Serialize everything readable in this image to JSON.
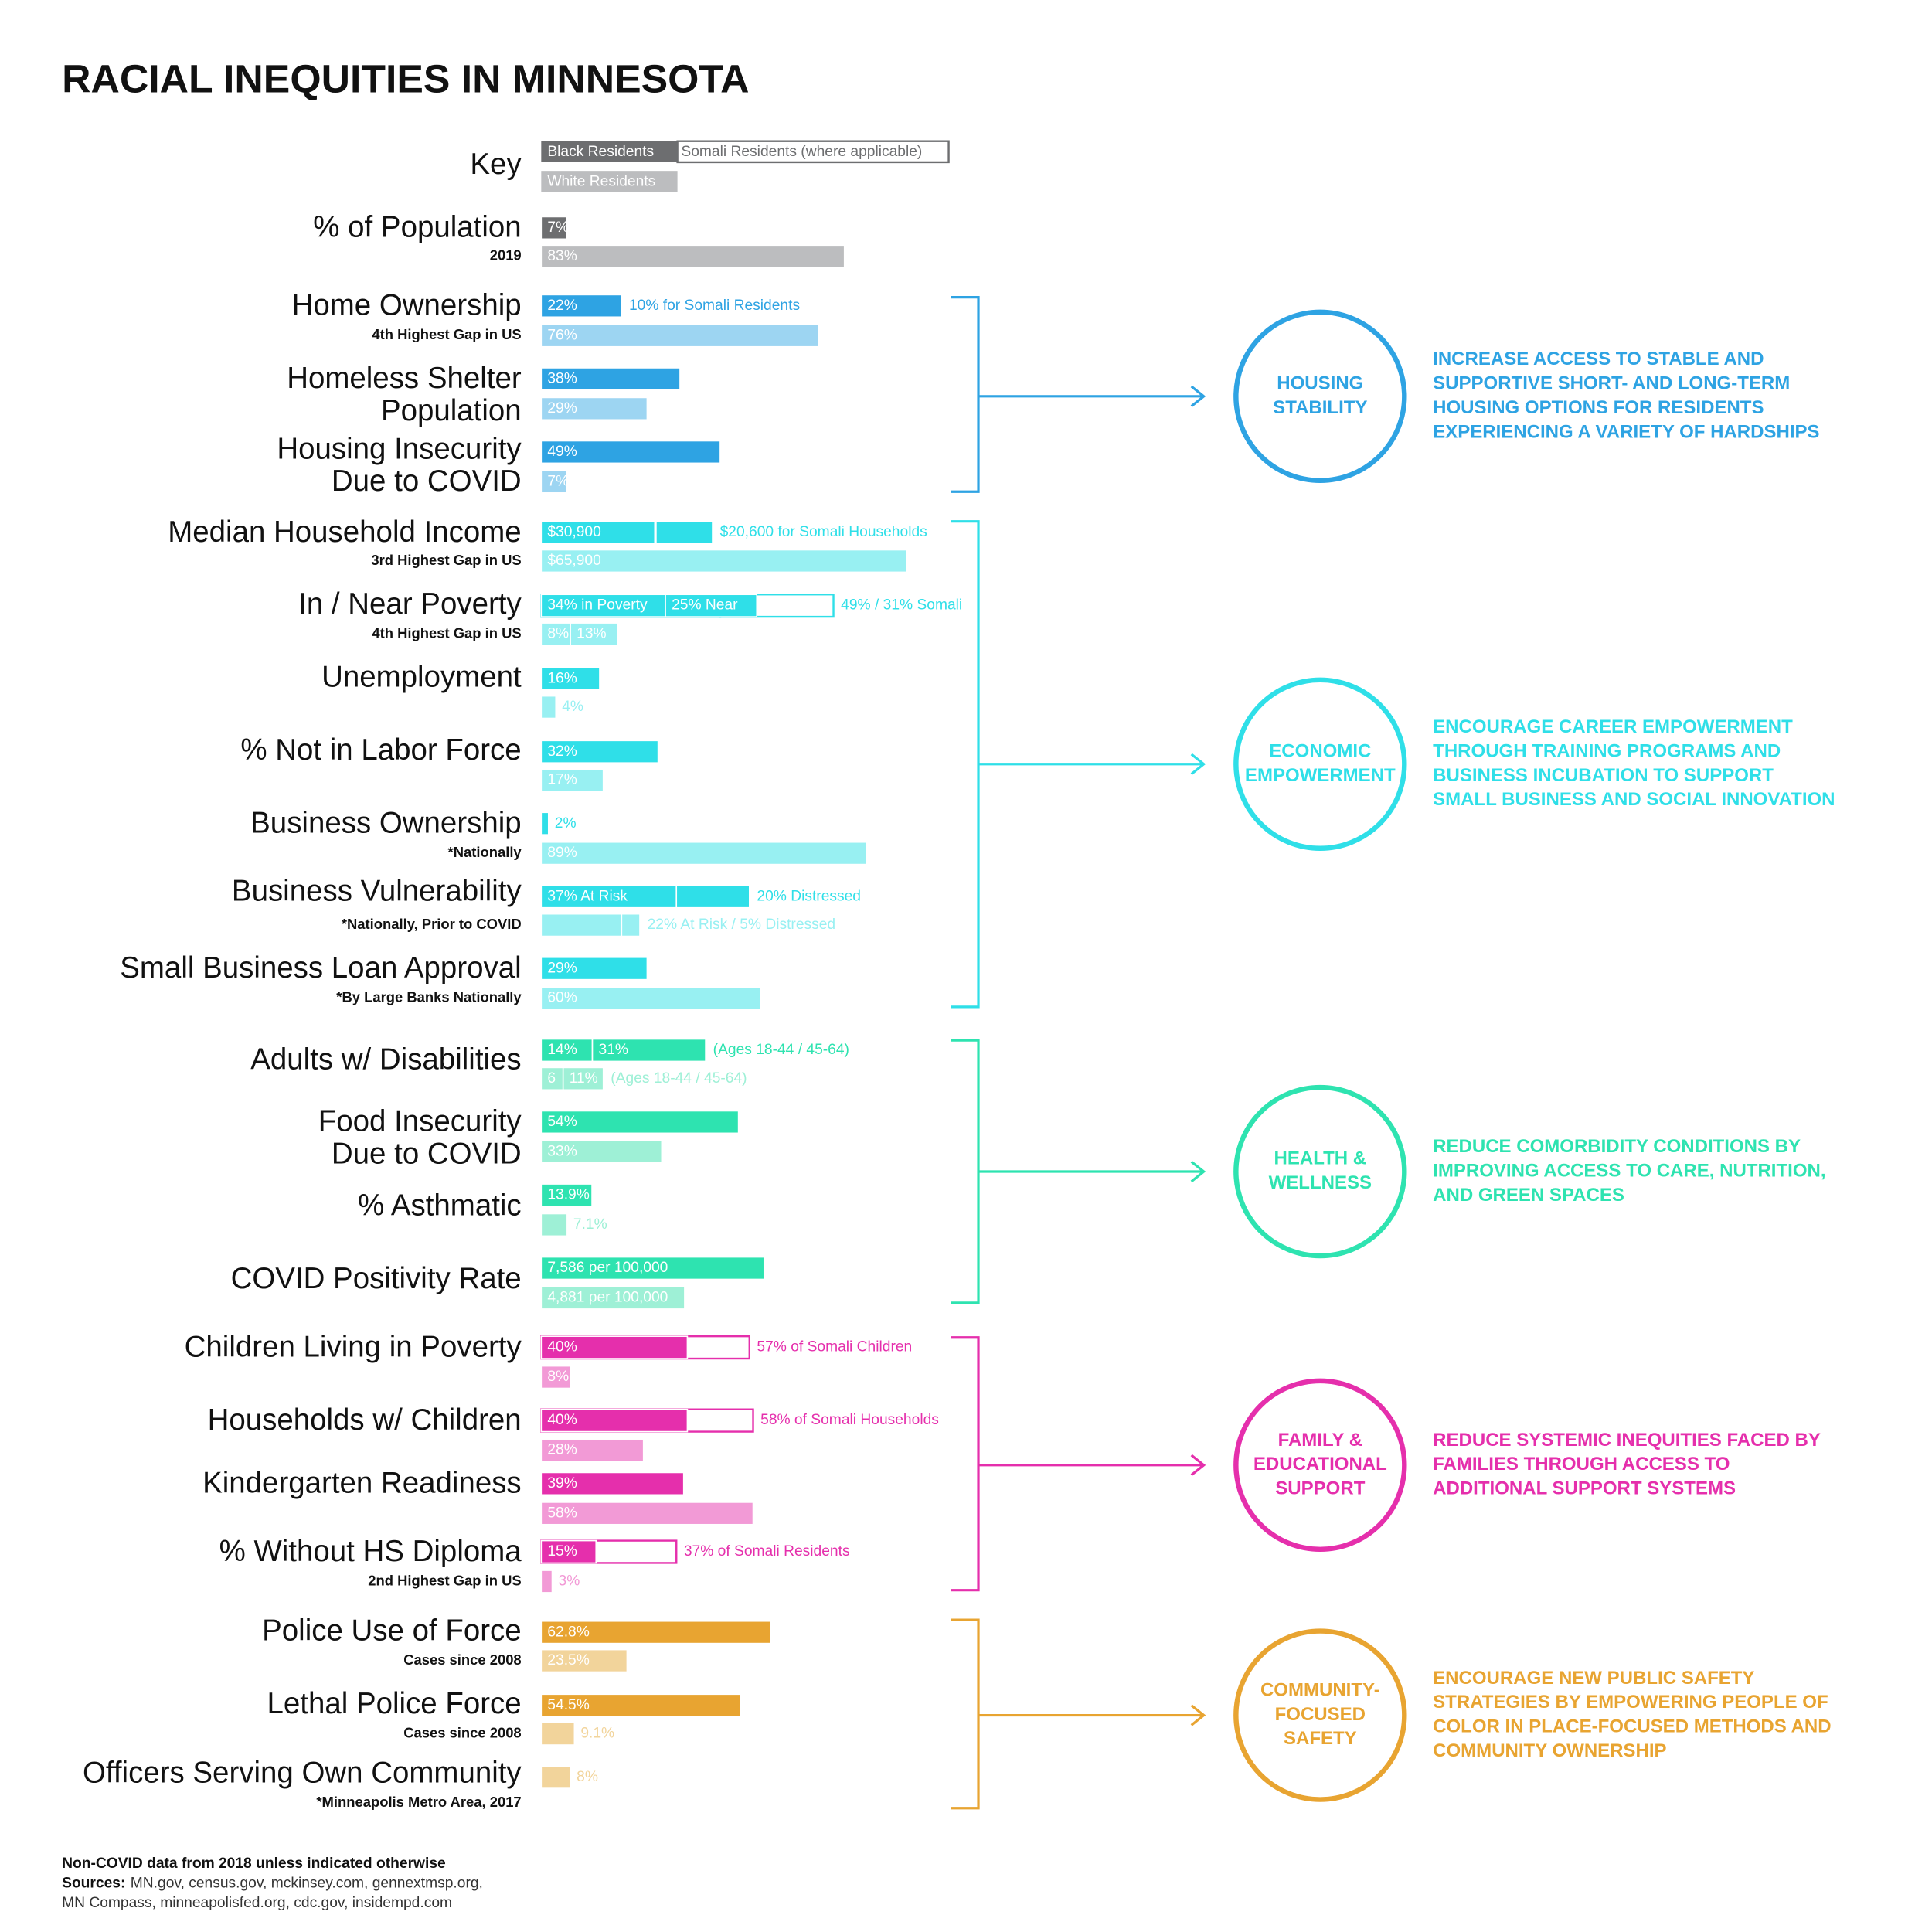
{
  "title": "RACIAL INEQUITIES IN MINNESOTA",
  "key": {
    "label": "Key",
    "black": "Black Residents",
    "somali": "Somali Residents (where applicable)",
    "white": "White Residents",
    "black_color": "#6d6e70",
    "white_color": "#bcbdbf"
  },
  "population": {
    "label": [
      "% of Population"
    ],
    "sublabel": "2019",
    "black": {
      "values": [
        7
      ],
      "value_labels": [
        "7%"
      ]
    },
    "white": {
      "values": [
        83
      ],
      "value_labels": [
        "83%"
      ]
    }
  },
  "groups": [
    {
      "title": [
        "HOUSING",
        "STABILITY"
      ],
      "text": [
        "INCREASE ACCESS TO STABLE AND",
        "SUPPORTIVE SHORT- AND LONG-TERM",
        "HOUSING OPTIONS FOR RESIDENTS",
        "EXPERIENCING A VARIETY OF HARDSHIPS"
      ],
      "color": "#2ea3e3",
      "light_color": "#9dd5f2",
      "rows": [
        {
          "label": [
            "Home Ownership"
          ],
          "sublabel": "4th Highest Gap in US",
          "black": {
            "values": [
              22
            ],
            "value_labels": [
              "22%"
            ],
            "note": "10% for Somali Residents"
          },
          "white": {
            "values": [
              76
            ],
            "value_labels": [
              "76%"
            ]
          }
        },
        {
          "label": [
            "Homeless Shelter",
            "Population"
          ],
          "black": {
            "values": [
              38
            ],
            "value_labels": [
              "38%"
            ]
          },
          "white": {
            "values": [
              29
            ],
            "value_labels": [
              "29%"
            ]
          }
        },
        {
          "label": [
            "Housing Insecurity",
            "Due to COVID"
          ],
          "black": {
            "values": [
              49
            ],
            "value_labels": [
              "49%"
            ]
          },
          "white": {
            "values": [
              7
            ],
            "value_labels": [
              "7%"
            ]
          }
        }
      ]
    },
    {
      "title": [
        "ECONOMIC",
        "EMPOWERMENT"
      ],
      "text": [
        "ENCOURAGE CAREER EMPOWERMENT",
        "THROUGH TRAINING PROGRAMS AND",
        "BUSINESS INCUBATION TO SUPPORT",
        "SMALL BUSINESS AND SOCIAL INNOVATION"
      ],
      "color": "#2fdfe8",
      "light_color": "#98f0f2",
      "rows": [
        {
          "label": [
            "Median Household Income"
          ],
          "sublabel": "3rd Highest Gap in US",
          "black": {
            "values": [
              30900
            ],
            "value_labels": [
              "$30,900"
            ],
            "somali": [
              20600
            ],
            "note": "$20,600 for Somali Households"
          },
          "white": {
            "values": [
              65900
            ],
            "value_labels": [
              "$65,900"
            ]
          }
        },
        {
          "label": [
            "In / Near Poverty"
          ],
          "sublabel": "4th Highest Gap in US",
          "black": {
            "values": [
              34,
              25
            ],
            "value_labels": [
              "34% in Poverty",
              "25% Near"
            ],
            "somali": [
              49,
              31
            ],
            "note": "49% / 31% Somali"
          },
          "white": {
            "values": [
              8,
              13
            ],
            "value_labels": [
              "8%",
              "13%"
            ]
          }
        },
        {
          "label": [
            "Unemployment"
          ],
          "black": {
            "values": [
              16
            ],
            "value_labels": [
              "16%"
            ]
          },
          "white": {
            "values": [
              4
            ],
            "value_labels": [
              "4%"
            ],
            "label_outside": true
          }
        },
        {
          "label": [
            "% Not in Labor Force"
          ],
          "black": {
            "values": [
              32
            ],
            "value_labels": [
              "32%"
            ]
          },
          "white": {
            "values": [
              17
            ],
            "value_labels": [
              "17%"
            ]
          }
        },
        {
          "label": [
            "Business Ownership"
          ],
          "sublabel": "*Nationally",
          "black": {
            "values": [
              2
            ],
            "value_labels": [
              "2%"
            ],
            "label_outside": true
          },
          "white": {
            "values": [
              89
            ],
            "value_labels": [
              "89%"
            ]
          }
        },
        {
          "label": [
            "Business Vulnerability"
          ],
          "sublabel": "*Nationally, Prior to COVID",
          "black": {
            "values": [
              37,
              20
            ],
            "value_labels": [
              "37% At Risk",
              null
            ],
            "note": "20% Distressed"
          },
          "white": {
            "values": [
              22,
              5
            ],
            "value_labels": [
              null,
              null
            ],
            "note": "22% At Risk / 5% Distressed"
          }
        },
        {
          "label": [
            "Small Business Loan Approval"
          ],
          "sublabel": "*By Large Banks Nationally",
          "black": {
            "values": [
              29
            ],
            "value_labels": [
              "29%"
            ]
          },
          "white": {
            "values": [
              60
            ],
            "value_labels": [
              "60%"
            ]
          }
        }
      ]
    },
    {
      "title": [
        "HEALTH &",
        "WELLNESS"
      ],
      "text": [
        "REDUCE COMORBIDITY CONDITIONS BY",
        "IMPROVING ACCESS TO CARE, NUTRITION,",
        "AND GREEN SPACES"
      ],
      "color": "#2ee3b0",
      "light_color": "#9ef0d6",
      "rows": [
        {
          "label": [
            "Adults w/ Disabilities"
          ],
          "black": {
            "values": [
              14,
              31
            ],
            "value_labels": [
              "14%",
              "31%"
            ],
            "note": "(Ages 18-44 / 45-64)"
          },
          "white": {
            "values": [
              6,
              11
            ],
            "value_labels": [
              "6",
              "11%"
            ],
            "note": "(Ages 18-44 / 45-64)"
          }
        },
        {
          "label": [
            "Food Insecurity",
            "Due to COVID"
          ],
          "black": {
            "values": [
              54
            ],
            "value_labels": [
              "54%"
            ]
          },
          "white": {
            "values": [
              33
            ],
            "value_labels": [
              "33%"
            ]
          }
        },
        {
          "label": [
            "% Asthmatic"
          ],
          "black": {
            "values": [
              13.9
            ],
            "value_labels": [
              "13.9%"
            ]
          },
          "white": {
            "values": [
              7.1
            ],
            "value_labels": [
              "7.1%"
            ],
            "label_outside": true
          }
        },
        {
          "label": [
            "COVID Positivity Rate"
          ],
          "black": {
            "values": [
              7586
            ],
            "value_labels": [
              "7,586 per 100,000"
            ]
          },
          "white": {
            "values": [
              4881
            ],
            "value_labels": [
              "4,881 per 100,000"
            ]
          }
        }
      ]
    },
    {
      "title": [
        "FAMILY &",
        "EDUCATIONAL",
        "SUPPORT"
      ],
      "text": [
        "REDUCE SYSTEMIC INEQUITIES FACED BY",
        "FAMILIES THROUGH ACCESS TO",
        "ADDITIONAL SUPPORT SYSTEMS"
      ],
      "color": "#e52fac",
      "light_color": "#f29ad6",
      "rows": [
        {
          "label": [
            "Children Living in Poverty"
          ],
          "black": {
            "values": [
              40
            ],
            "value_labels": [
              "40%"
            ],
            "somali": [
              57
            ],
            "note": "57% of Somali Children"
          },
          "white": {
            "values": [
              8
            ],
            "value_labels": [
              "8%"
            ]
          }
        },
        {
          "label": [
            "Households w/ Children"
          ],
          "black": {
            "values": [
              40
            ],
            "value_labels": [
              "40%"
            ],
            "somali": [
              58
            ],
            "note": "58% of Somali Households"
          },
          "white": {
            "values": [
              28
            ],
            "value_labels": [
              "28%"
            ]
          }
        },
        {
          "label": [
            "Kindergarten Readiness"
          ],
          "black": {
            "values": [
              39
            ],
            "value_labels": [
              "39%"
            ]
          },
          "white": {
            "values": [
              58
            ],
            "value_labels": [
              "58%"
            ]
          }
        },
        {
          "label": [
            "% Without HS Diploma"
          ],
          "sublabel": "2nd Highest Gap in US",
          "black": {
            "values": [
              15
            ],
            "value_labels": [
              "15%"
            ],
            "somali": [
              37
            ],
            "note": "37% of Somali Residents"
          },
          "white": {
            "values": [
              3
            ],
            "value_labels": [
              "3%"
            ],
            "label_outside": true
          }
        }
      ]
    },
    {
      "title": [
        "COMMUNITY-",
        "FOCUSED",
        "SAFETY"
      ],
      "text": [
        "ENCOURAGE NEW PUBLIC SAFETY",
        "STRATEGIES BY EMPOWERING PEOPLE OF",
        "COLOR IN PLACE-FOCUSED METHODS AND",
        "COMMUNITY OWNERSHIP"
      ],
      "color": "#e8a431",
      "light_color": "#f2d49b",
      "rows": [
        {
          "label": [
            "Police Use of Force"
          ],
          "sublabel": "Cases since 2008",
          "black": {
            "values": [
              62.8
            ],
            "value_labels": [
              "62.8%"
            ]
          },
          "white": {
            "values": [
              23.5
            ],
            "value_labels": [
              "23.5%"
            ]
          }
        },
        {
          "label": [
            "Lethal Police Force"
          ],
          "sublabel": "Cases since 2008",
          "black": {
            "values": [
              54.5
            ],
            "value_labels": [
              "54.5%"
            ]
          },
          "white": {
            "values": [
              9.1
            ],
            "value_labels": [
              "9.1%"
            ],
            "label_outside": true
          }
        },
        {
          "label": [
            "Officers Serving Own Community"
          ],
          "sublabel": "*Minneapolis Metro Area, 2017",
          "white": {
            "values": [
              8
            ],
            "value_labels": [
              "8%"
            ],
            "label_outside": true
          }
        }
      ]
    }
  ],
  "footer": {
    "note": "Non-COVID data from 2018 unless indicated otherwise",
    "sources_label": "Sources:",
    "sources": [
      "MN.gov, census.gov, mckinsey.com, gennextmsp.org,",
      "MN Compass, minneapolisfed.org, cdc.gov, insidempd.com"
    ]
  }
}
